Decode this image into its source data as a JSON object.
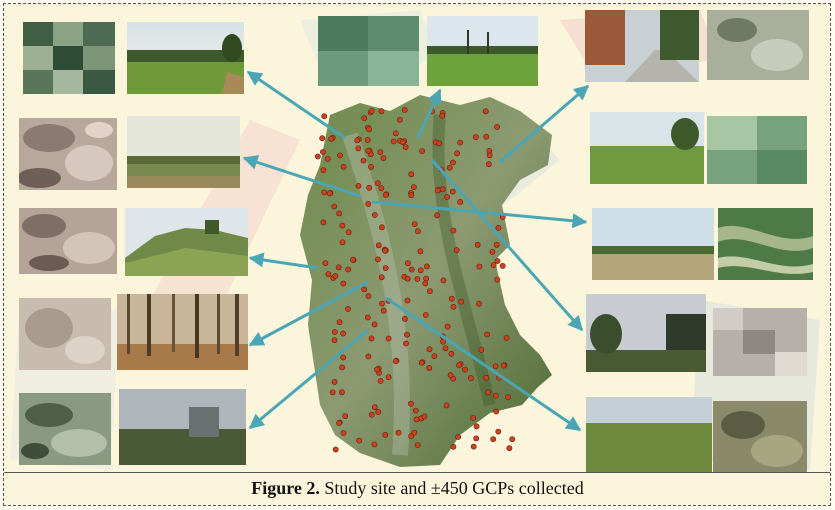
{
  "figure": {
    "label": "Figure 2.",
    "caption": "Study site and ±450 GCPs collected"
  },
  "colors": {
    "arrow": "#4aa6b5",
    "gcp_marker": "#c8431e",
    "map_vegetation": "#5f7a3c"
  }
}
